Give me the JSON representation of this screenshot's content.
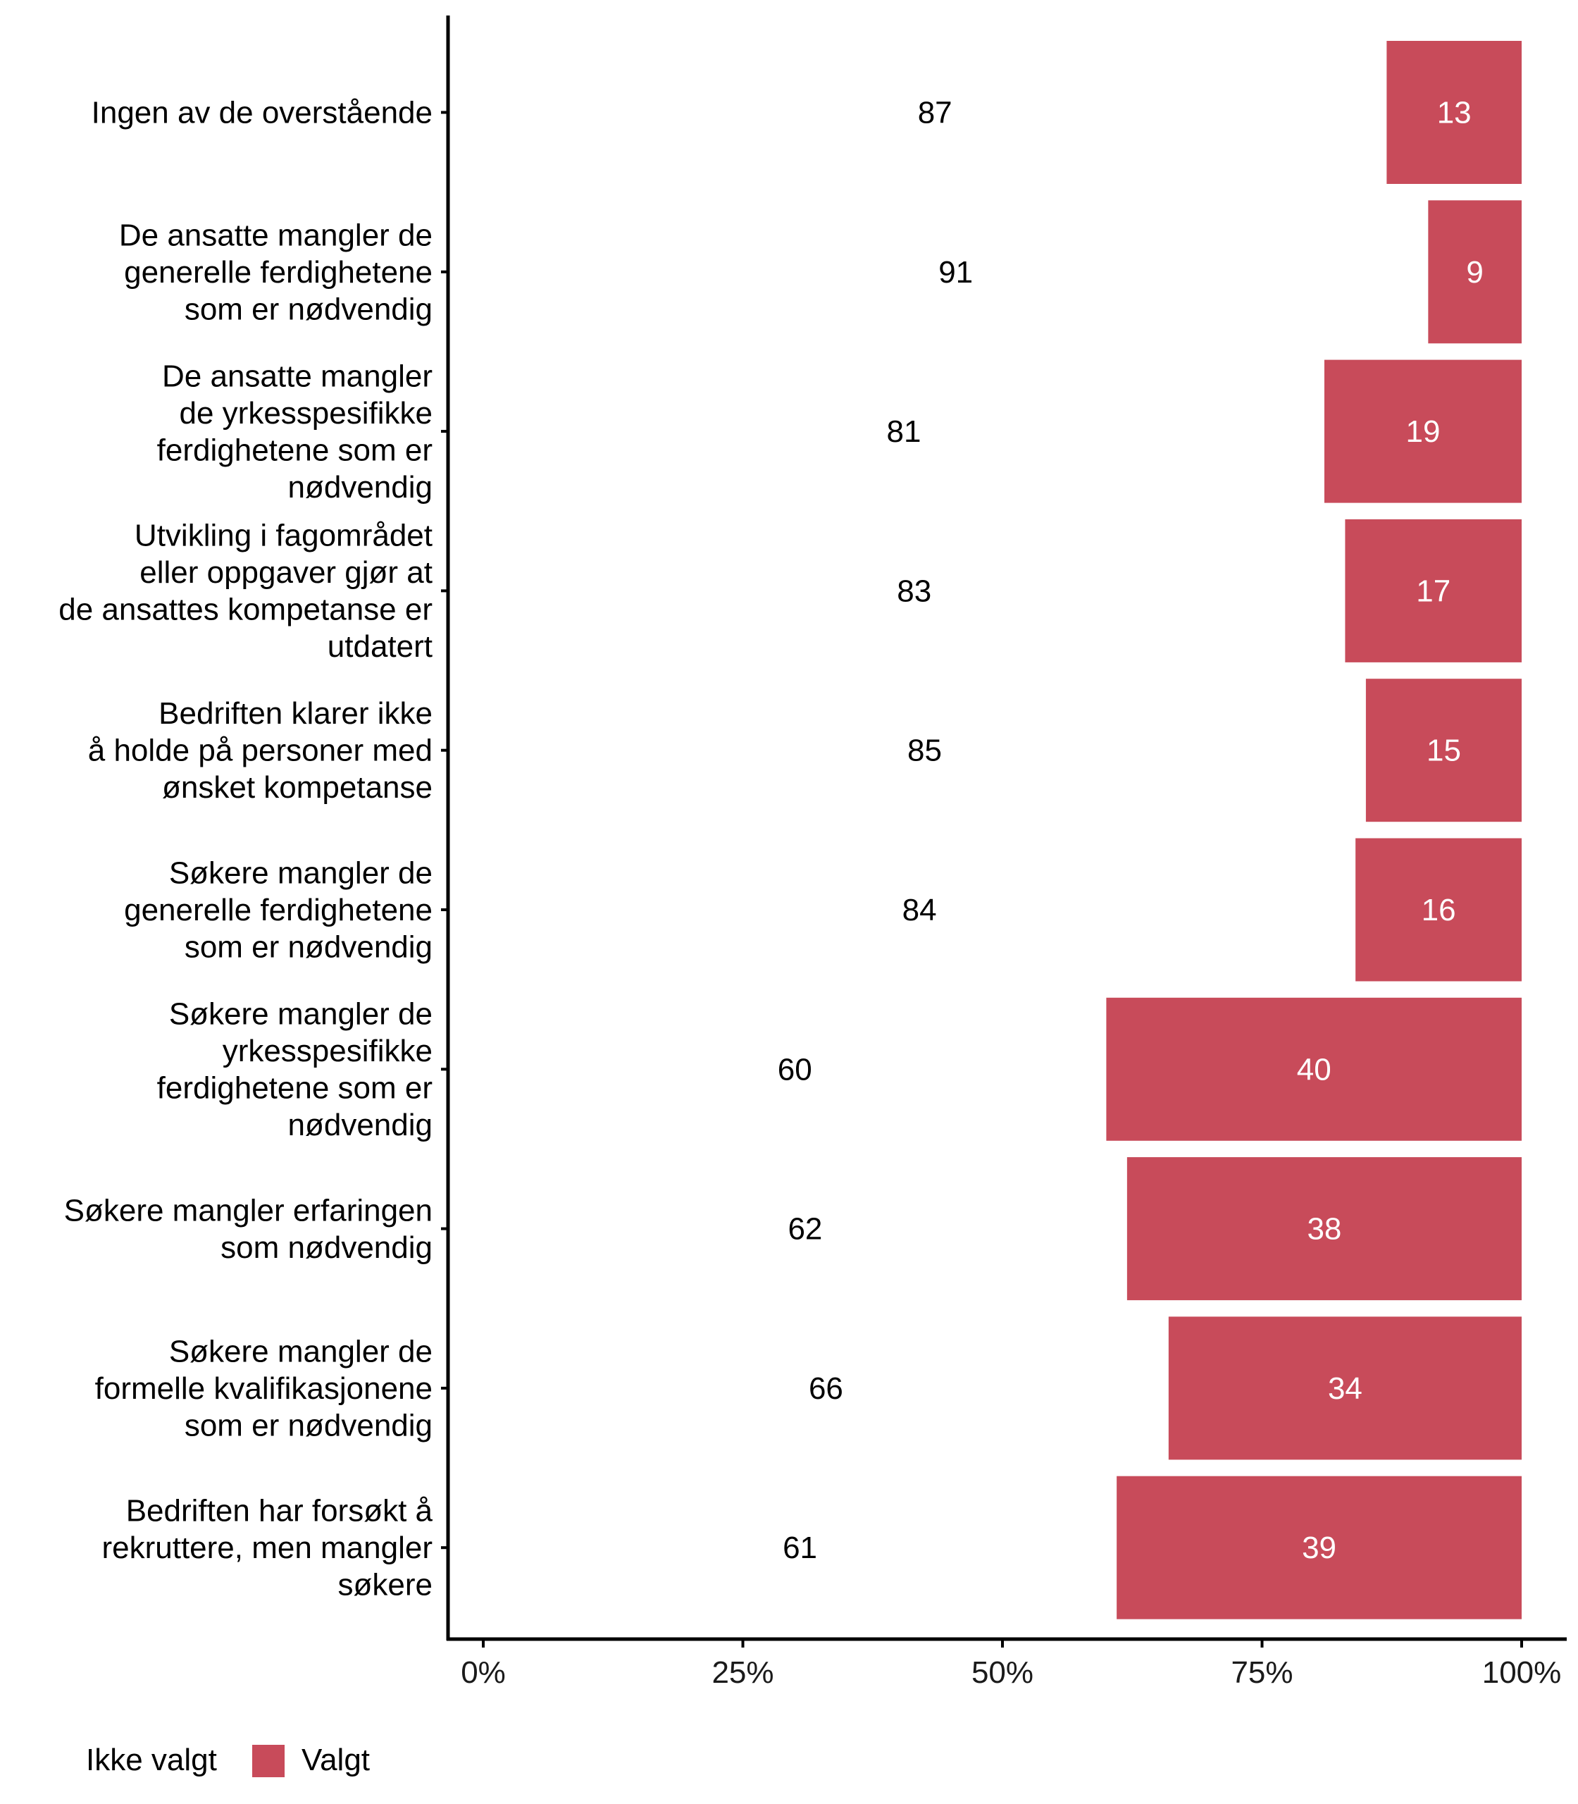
{
  "chart_data": {
    "type": "bar",
    "orientation": "horizontal",
    "stacked": true,
    "percent_scale": true,
    "title": "",
    "xlabel": "",
    "ylabel": "",
    "xlim": [
      0,
      100
    ],
    "x_ticks": [
      0,
      25,
      50,
      75,
      100
    ],
    "x_tick_labels": [
      "0%",
      "25%",
      "50%",
      "75%",
      "100%"
    ],
    "grid": false,
    "legend_position": "bottom-left",
    "categories": [
      [
        "Ingen av de overstående"
      ],
      [
        "De ansatte mangler de",
        "generelle ferdighetene",
        "som er nødvendig"
      ],
      [
        "De ansatte mangler",
        "de yrkesspesifikke",
        "ferdighetene som er",
        "nødvendig"
      ],
      [
        "Utvikling i fagområdet",
        "eller oppgaver gjør at",
        "de ansattes kompetanse er",
        "utdatert"
      ],
      [
        "Bedriften klarer ikke",
        "å holde på personer med",
        "ønsket kompetanse"
      ],
      [
        "Søkere mangler de",
        "generelle ferdighetene",
        "som er nødvendig"
      ],
      [
        "Søkere mangler de",
        "yrkesspesifikke",
        "ferdighetene som er",
        "nødvendig"
      ],
      [
        "Søkere mangler erfaringen",
        "som nødvendig"
      ],
      [
        "Søkere mangler de",
        "formelle kvalifikasjonene",
        "som er nødvendig"
      ],
      [
        "Bedriften har forsøkt å",
        "rekruttere, men mangler",
        "søkere"
      ]
    ],
    "series": [
      {
        "name": "Ikke valgt",
        "color": "#ffffff",
        "label_color": "#000000",
        "values": [
          87,
          91,
          81,
          83,
          85,
          84,
          60,
          62,
          66,
          61
        ]
      },
      {
        "name": "Valgt",
        "color": "#c84b5a",
        "label_color": "#ffffff",
        "values": [
          13,
          9,
          19,
          17,
          15,
          16,
          40,
          38,
          34,
          39
        ]
      }
    ]
  },
  "legend": {
    "title": "Ikke valgt",
    "items": [
      {
        "label": "Valgt",
        "color": "#c84b5a"
      }
    ]
  }
}
